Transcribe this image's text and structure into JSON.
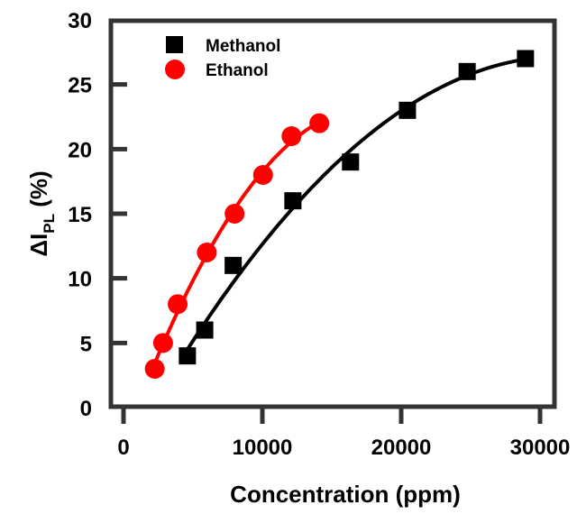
{
  "chart_data": {
    "type": "scatter",
    "title": "",
    "xlabel": "Concentration (ppm)",
    "ylabel_main": "ΔI",
    "ylabel_sub": "PL",
    "ylabel_suffix": " (%)",
    "xlim": [
      -1000,
      32000
    ],
    "ylim": [
      0,
      30
    ],
    "xticks": [
      0,
      10000,
      20000,
      30000
    ],
    "xtick_labels": [
      "0",
      "10000",
      "20000",
      "30000"
    ],
    "yticks": [
      0,
      5,
      10,
      15,
      20,
      25,
      30
    ],
    "ytick_labels": [
      "0",
      "5",
      "10",
      "15",
      "20",
      "25",
      "30"
    ],
    "grid": false,
    "legend_position": "top-left",
    "series": [
      {
        "name": "Methanol",
        "marker": "square",
        "color": "#000000",
        "fit_line": true,
        "x": [
          4600,
          5850,
          7900,
          12200,
          16350,
          20450,
          24750,
          28950
        ],
        "y": [
          4,
          6,
          11,
          16,
          19,
          23,
          26,
          27
        ]
      },
      {
        "name": "Ethanol",
        "marker": "circle",
        "color": "#ff0000",
        "fit_line": true,
        "x": [
          2250,
          2850,
          3900,
          6000,
          8000,
          10050,
          12100,
          14100
        ],
        "y": [
          3,
          5,
          8,
          12,
          15,
          18,
          21,
          22
        ]
      }
    ]
  }
}
